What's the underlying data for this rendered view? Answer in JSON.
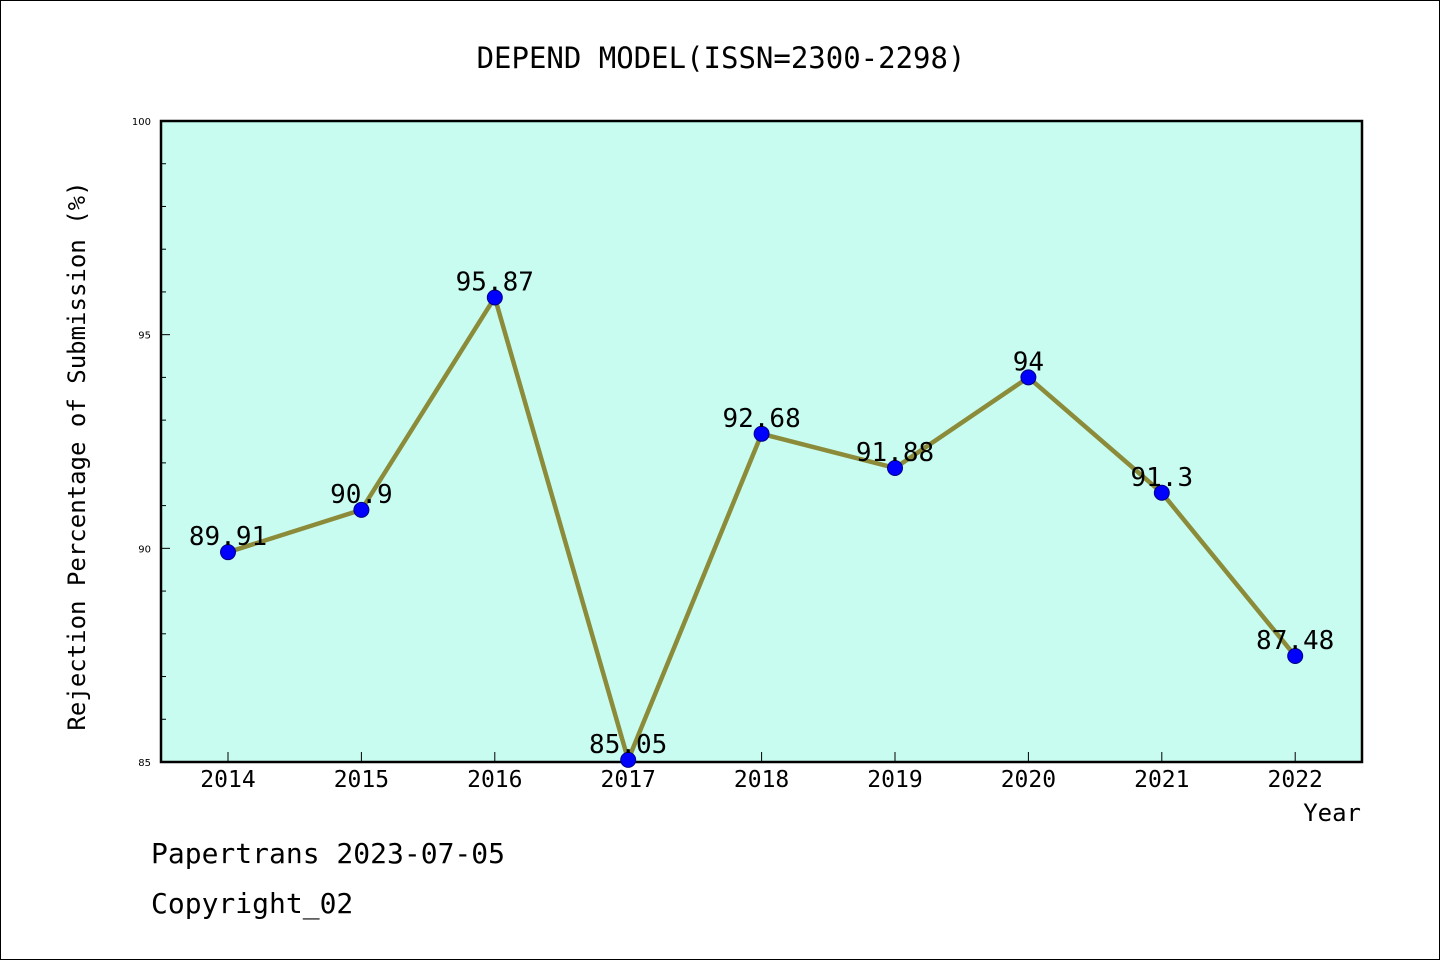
{
  "colors": {
    "plot_background": "#c8fcf0",
    "line": "#8b8b3a",
    "marker_fill": "#0000ff",
    "marker_edge": "#000080",
    "text": "#000000"
  },
  "chart_data": {
    "type": "line",
    "title": "DEPEND MODEL(ISSN=2300-2298)",
    "xlabel": "Year",
    "ylabel": "Rejection Percentage of Submission (%)",
    "categories": [
      "2014",
      "2015",
      "2016",
      "2017",
      "2018",
      "2019",
      "2020",
      "2021",
      "2022"
    ],
    "series": [
      {
        "values": [
          89.91,
          90.9,
          95.87,
          85.05,
          92.68,
          91.88,
          94,
          91.3,
          87.48
        ],
        "labels": [
          "89.91",
          "90.9",
          "95.87",
          "85.05",
          "92.68",
          "91.88",
          "94",
          "91.3",
          "87.48"
        ]
      }
    ],
    "ylim": [
      85,
      100
    ],
    "yticks": [
      85,
      90,
      95,
      100
    ],
    "ytick_labels": [
      "85",
      "90",
      "95",
      "100"
    ],
    "grid": false,
    "legend": false
  },
  "footer": {
    "line1": "Papertrans 2023-07-05",
    "line2": "Copyright_02"
  }
}
